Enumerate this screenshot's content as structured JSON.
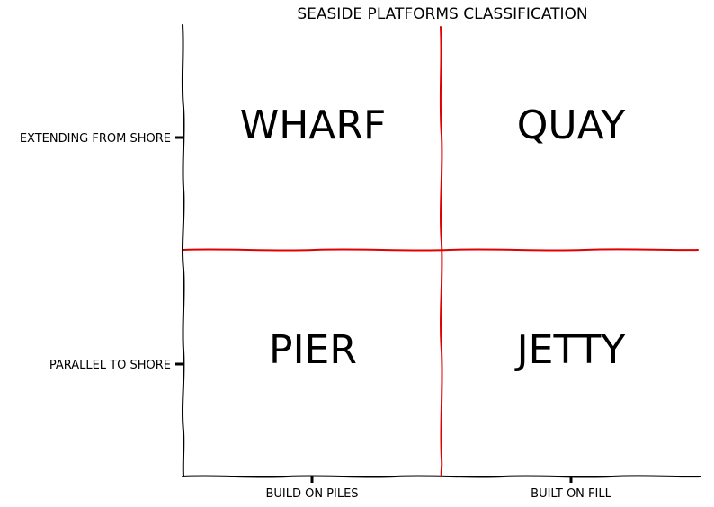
{
  "title": "SEASIDE PLATFORMS CLASSIFICATION",
  "y_axis": {
    "ticks": [
      "EXTENDING FROM SHORE",
      "PARALLEL TO SHORE"
    ]
  },
  "x_axis": {
    "ticks": [
      "BUILD ON PILES",
      "BUILT ON FILL"
    ]
  },
  "cells": {
    "top_left": "WHARF",
    "top_right": "QUAY",
    "bottom_left": "PIER",
    "bottom_right": "JETTY"
  },
  "colors": {
    "axis": "#000000",
    "divider": "#e00000"
  }
}
